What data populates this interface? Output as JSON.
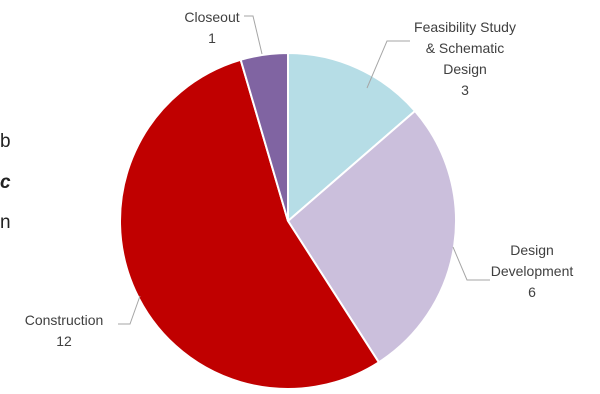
{
  "background_text": [
    "b",
    "c",
    "n"
  ],
  "chart_data": {
    "type": "pie",
    "title": "",
    "slices": [
      {
        "label_lines": [
          "Feasibility Study",
          "& Schematic",
          "Design"
        ],
        "value": 3,
        "color": "#b6dde6"
      },
      {
        "label_lines": [
          "Design",
          "Development"
        ],
        "value": 6,
        "color": "#cbbfdc"
      },
      {
        "label_lines": [
          "Construction"
        ],
        "value": 12,
        "color": "#c00000"
      },
      {
        "label_lines": [
          "Closeout"
        ],
        "value": 1,
        "color": "#8064a2"
      }
    ],
    "data_labels": "category and value, outside with leader lines",
    "legend": "none"
  }
}
